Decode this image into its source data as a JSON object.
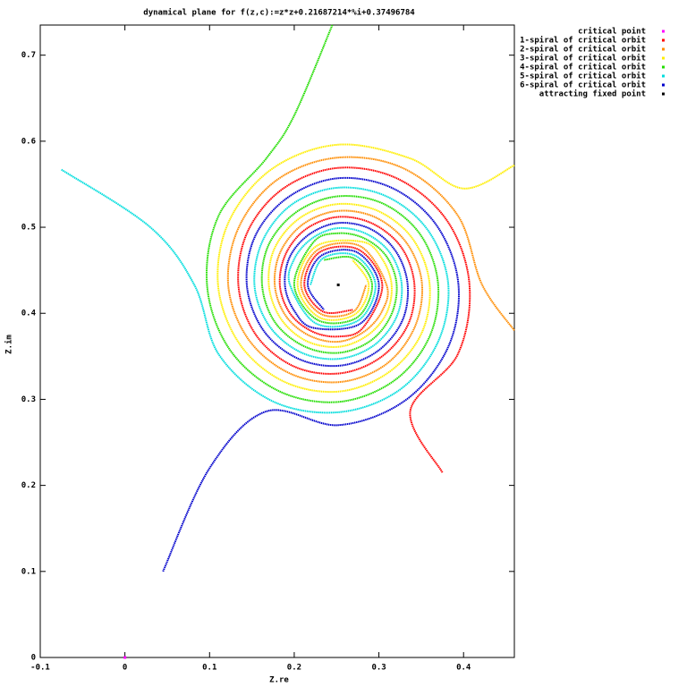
{
  "chart_data": {
    "type": "scatter",
    "title": "dynamical plane for f(z,c):=z*z+0.21687214*%i+0.37496784",
    "x_label": "Z.re",
    "y_label": "Z.im",
    "xlim": [
      -0.1,
      0.46
    ],
    "ylim": [
      0,
      0.735
    ],
    "xticks": [
      -0.1,
      0,
      0.1,
      0.2,
      0.3,
      0.4
    ],
    "yticks": [
      0,
      0.1,
      0.2,
      0.3,
      0.4,
      0.5,
      0.6,
      0.7
    ],
    "grid": false,
    "legend": "top-right",
    "series": [
      {
        "name": "critical point",
        "color": "#ff00ff",
        "x": [
          0
        ],
        "values": [
          0
        ]
      },
      {
        "name": "1-spiral of critical orbit",
        "color": "#ff0000",
        "x": [
          0.375,
          0.337,
          0.393,
          0.407,
          0.381,
          0.323,
          0.252,
          0.187,
          0.145,
          0.134,
          0.154,
          0.198,
          0.252,
          0.301,
          0.334,
          0.342,
          0.327,
          0.293,
          0.252,
          0.214,
          0.19,
          0.183,
          0.195,
          0.221,
          0.252,
          0.281,
          0.304,
          0.276,
          0.23,
          0.212,
          0.234,
          0.269
        ],
        "values": [
          0.215,
          0.286,
          0.352,
          0.433,
          0.507,
          0.556,
          0.569,
          0.545,
          0.495,
          0.433,
          0.376,
          0.339,
          0.33,
          0.348,
          0.386,
          0.433,
          0.476,
          0.504,
          0.512,
          0.498,
          0.469,
          0.433,
          0.4,
          0.379,
          0.373,
          0.383,
          0.433,
          0.474,
          0.471,
          0.433,
          0.402,
          0.404
        ]
      },
      {
        "name": "2-spiral of critical orbit",
        "color": "#ff8c00",
        "x": [
          0.46,
          0.422,
          0.393,
          0.33,
          0.252,
          0.181,
          0.135,
          0.122,
          0.145,
          0.193,
          0.252,
          0.306,
          0.341,
          0.351,
          0.334,
          0.297,
          0.252,
          0.211,
          0.184,
          0.177,
          0.19,
          0.218,
          0.252,
          0.283,
          0.304,
          0.309,
          0.278,
          0.228,
          0.208,
          0.232,
          0.27,
          0.285
        ],
        "values": [
          0.38,
          0.433,
          0.514,
          0.568,
          0.581,
          0.556,
          0.501,
          0.433,
          0.371,
          0.331,
          0.32,
          0.339,
          0.381,
          0.433,
          0.48,
          0.511,
          0.519,
          0.504,
          0.472,
          0.433,
          0.397,
          0.374,
          0.367,
          0.379,
          0.403,
          0.433,
          0.478,
          0.474,
          0.433,
          0.399,
          0.402,
          0.433
        ]
      },
      {
        "name": "3-spiral of critical orbit",
        "color": "#ffee00",
        "x": [
          0.46,
          0.4,
          0.337,
          0.252,
          0.174,
          0.123,
          0.11,
          0.135,
          0.187,
          0.252,
          0.311,
          0.35,
          0.36,
          0.341,
          0.301,
          0.252,
          0.207,
          0.177,
          0.17,
          0.184,
          0.214,
          0.252,
          0.286,
          0.309,
          0.315,
          0.304,
          0.281,
          0.226,
          0.204,
          0.23,
          0.272,
          0.288,
          0.269
        ],
        "values": [
          0.572,
          0.545,
          0.58,
          0.596,
          0.568,
          0.507,
          0.433,
          0.365,
          0.321,
          0.309,
          0.331,
          0.376,
          0.433,
          0.485,
          0.518,
          0.527,
          0.511,
          0.476,
          0.433,
          0.394,
          0.368,
          0.361,
          0.374,
          0.4,
          0.433,
          0.463,
          0.483,
          0.478,
          0.433,
          0.395,
          0.399,
          0.433,
          0.462
        ]
      },
      {
        "name": "4-spiral of critical orbit",
        "color": "#22dd00",
        "x": [
          0.245,
          0.2,
          0.167,
          0.111,
          0.097,
          0.123,
          0.181,
          0.252,
          0.317,
          0.359,
          0.37,
          0.35,
          0.306,
          0.252,
          0.203,
          0.17,
          0.162,
          0.177,
          0.211,
          0.252,
          0.29,
          0.314,
          0.321,
          0.309,
          0.283,
          0.252,
          0.223,
          0.2,
          0.228,
          0.274,
          0.292,
          0.27,
          0.235
        ],
        "values": [
          0.735,
          0.63,
          0.58,
          0.514,
          0.433,
          0.359,
          0.31,
          0.297,
          0.321,
          0.371,
          0.433,
          0.49,
          0.527,
          0.536,
          0.518,
          0.48,
          0.433,
          0.39,
          0.362,
          0.354,
          0.368,
          0.397,
          0.433,
          0.466,
          0.487,
          0.493,
          0.483,
          0.433,
          0.392,
          0.395,
          0.433,
          0.464,
          0.462
        ]
      },
      {
        "name": "5-spiral of critical orbit",
        "color": "#00dddd",
        "x": [
          -0.075,
          0.03,
          0.082,
          0.111,
          0.174,
          0.252,
          0.323,
          0.369,
          0.382,
          0.359,
          0.311,
          0.252,
          0.198,
          0.163,
          0.153,
          0.17,
          0.207,
          0.252,
          0.293,
          0.32,
          0.327,
          0.314,
          0.286,
          0.252,
          0.221,
          0.2,
          0.195,
          0.226,
          0.276,
          0.296,
          0.272,
          0.234,
          0.219
        ],
        "values": [
          0.567,
          0.5,
          0.433,
          0.352,
          0.298,
          0.285,
          0.31,
          0.365,
          0.433,
          0.495,
          0.535,
          0.546,
          0.527,
          0.485,
          0.433,
          0.386,
          0.355,
          0.347,
          0.362,
          0.394,
          0.433,
          0.469,
          0.492,
          0.499,
          0.487,
          0.463,
          0.433,
          0.388,
          0.392,
          0.433,
          0.467,
          0.464,
          0.433
        ]
      },
      {
        "name": "6-spiral of critical orbit",
        "color": "#0000cc",
        "x": [
          0.045,
          0.1,
          0.167,
          0.252,
          0.33,
          0.381,
          0.394,
          0.369,
          0.317,
          0.252,
          0.193,
          0.154,
          0.144,
          0.163,
          0.203,
          0.252,
          0.297,
          0.327,
          0.334,
          0.32,
          0.29,
          0.252,
          0.218,
          0.195,
          0.189,
          0.2,
          0.223,
          0.278,
          0.3,
          0.274,
          0.232,
          0.216,
          0.235
        ],
        "values": [
          0.1,
          0.22,
          0.286,
          0.27,
          0.298,
          0.359,
          0.433,
          0.501,
          0.545,
          0.557,
          0.535,
          0.49,
          0.433,
          0.381,
          0.348,
          0.339,
          0.355,
          0.39,
          0.433,
          0.472,
          0.498,
          0.505,
          0.492,
          0.466,
          0.433,
          0.403,
          0.383,
          0.388,
          0.433,
          0.471,
          0.467,
          0.433,
          0.404
        ]
      },
      {
        "name": "attracting fixed point",
        "color": "#000000",
        "x": [
          0.252
        ],
        "values": [
          0.433
        ]
      }
    ]
  }
}
